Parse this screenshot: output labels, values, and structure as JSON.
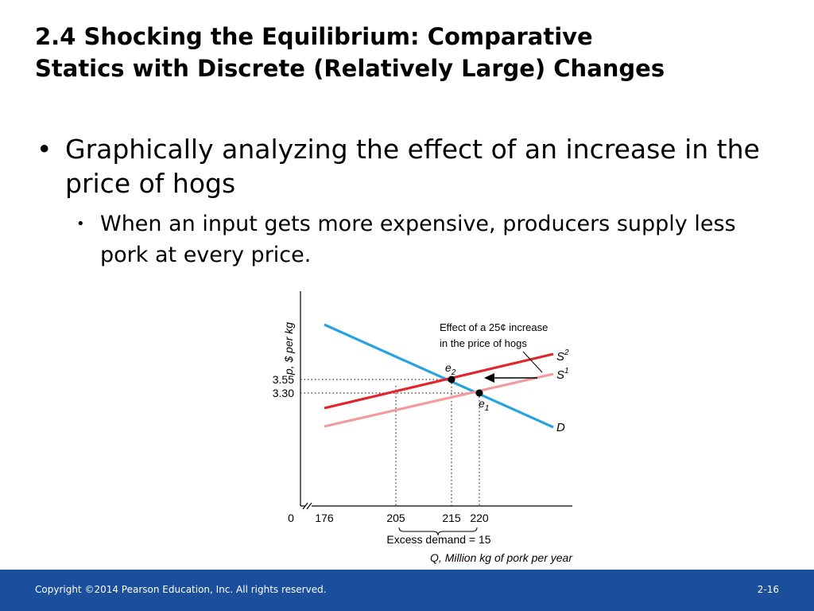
{
  "slide": {
    "title_line1": "2.4  Shocking the Equilibrium: Comparative",
    "title_line2": "Statics with Discrete (Relatively Large) Changes",
    "bullet1": "Graphically analyzing the effect of an increase in the price of hogs",
    "bullet2": "When an input gets more expensive, producers supply less pork at every price."
  },
  "chart_data": {
    "type": "line",
    "ylabel": "p, $ per kg",
    "xlabel": "Q, Million kg of pork per year",
    "x_ticks": [
      "0",
      "176",
      "205",
      "215",
      "220"
    ],
    "y_ticks": [
      "3.55",
      "3.30"
    ],
    "axis_break": true,
    "series": [
      {
        "name": "D",
        "color": "#29a3e0",
        "points": [
          [
            176,
            4.9
          ],
          [
            232,
            2.65
          ]
        ]
      },
      {
        "name": "S1",
        "color": "#f29a9e",
        "points": [
          [
            176,
            2.65
          ],
          [
            232,
            3.7
          ]
        ]
      },
      {
        "name": "S2",
        "color": "#e0252d",
        "points": [
          [
            176,
            2.9
          ],
          [
            232,
            3.95
          ]
        ]
      }
    ],
    "equilibria": [
      {
        "name": "e1",
        "label": "e",
        "sub": "1",
        "x": 220,
        "y": 3.3
      },
      {
        "name": "e2",
        "label": "e",
        "sub": "2",
        "x": 215,
        "y": 3.55
      }
    ],
    "annotation": {
      "line1": "Effect of a 25¢ increase",
      "line2": "in the price of hogs"
    },
    "excess_demand": {
      "label": "Excess demand = 15",
      "from": 205,
      "to": 220
    },
    "labels": {
      "D": "D",
      "S1_base": "S",
      "S1_sup": "1",
      "S2_base": "S",
      "S2_sup": "2"
    }
  },
  "footer": {
    "copyright": "Copyright ©2014 Pearson Education, Inc. All rights reserved.",
    "page": "2-16"
  }
}
